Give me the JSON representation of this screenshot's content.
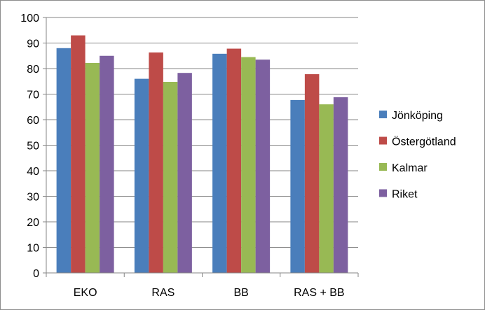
{
  "chart_data": {
    "type": "bar",
    "categories": [
      "EKO",
      "RAS",
      "BB",
      "RAS + BB"
    ],
    "series": [
      {
        "name": "Jönköping",
        "color": "#4a7ebb",
        "values": [
          88,
          76,
          85.8,
          67.7
        ]
      },
      {
        "name": "Östergötland",
        "color": "#be4b48",
        "values": [
          93,
          86.3,
          87.8,
          77.8
        ]
      },
      {
        "name": "Kalmar",
        "color": "#98b954",
        "values": [
          82.2,
          74.8,
          84.5,
          66
        ]
      },
      {
        "name": "Riket",
        "color": "#7d60a0",
        "values": [
          85,
          78.3,
          83.5,
          68.8
        ]
      }
    ],
    "yticks": [
      0,
      10,
      20,
      30,
      40,
      50,
      60,
      70,
      80,
      90,
      100
    ],
    "ylim": [
      0,
      100
    ],
    "grid": true,
    "legend_position": "right"
  }
}
